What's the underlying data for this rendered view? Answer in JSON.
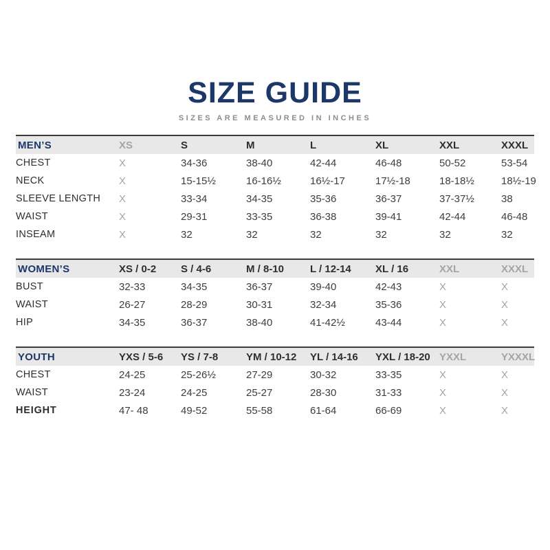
{
  "header": {
    "title": "SIZE GUIDE",
    "subtitle": "SIZES ARE MEASURED IN INCHES"
  },
  "colors": {
    "navy": "#1c3768",
    "text": "#3d3d3d",
    "muted": "#a4a4a4",
    "header_bg": "#e8e8e8",
    "rule": "#3b3b3b",
    "subtitle_gray": "#8d8d8d"
  },
  "unavailable_marker": "X",
  "tables": [
    {
      "id": "mens",
      "section_label": "MEN’S",
      "columns": [
        {
          "label": "XS",
          "muted": true
        },
        {
          "label": "S",
          "muted": false
        },
        {
          "label": "M",
          "muted": false
        },
        {
          "label": "L",
          "muted": false
        },
        {
          "label": "XL",
          "muted": false
        },
        {
          "label": "XXL",
          "muted": false
        },
        {
          "label": "XXXL",
          "muted": false
        }
      ],
      "rows": [
        {
          "label": "CHEST",
          "bold": false,
          "values": [
            "X",
            "34-36",
            "38-40",
            "42-44",
            "46-48",
            "50-52",
            "53-54"
          ]
        },
        {
          "label": "NECK",
          "bold": false,
          "values": [
            "X",
            "15-15½",
            "16-16½",
            "16½-17",
            "17½-18",
            "18-18½",
            "18½-19"
          ]
        },
        {
          "label": "SLEEVE LENGTH",
          "bold": false,
          "values": [
            "X",
            "33-34",
            "34-35",
            "35-36",
            "36-37",
            "37-37½",
            "38"
          ]
        },
        {
          "label": "WAIST",
          "bold": false,
          "values": [
            "X",
            "29-31",
            "33-35",
            "36-38",
            "39-41",
            "42-44",
            "46-48"
          ]
        },
        {
          "label": "INSEAM",
          "bold": false,
          "values": [
            "X",
            "32",
            "32",
            "32",
            "32",
            "32",
            "32"
          ]
        }
      ]
    },
    {
      "id": "womens",
      "section_label": "WOMEN’S",
      "columns": [
        {
          "label": "XS / 0-2",
          "muted": false
        },
        {
          "label": "S / 4-6",
          "muted": false
        },
        {
          "label": "M / 8-10",
          "muted": false
        },
        {
          "label": "L / 12-14",
          "muted": false
        },
        {
          "label": "XL / 16",
          "muted": false
        },
        {
          "label": "XXL",
          "muted": true
        },
        {
          "label": "XXXL",
          "muted": true
        }
      ],
      "rows": [
        {
          "label": "BUST",
          "bold": false,
          "values": [
            "32-33",
            "34-35",
            "36-37",
            "39-40",
            "42-43",
            "X",
            "X"
          ]
        },
        {
          "label": "WAIST",
          "bold": false,
          "values": [
            "26-27",
            "28-29",
            "30-31",
            "32-34",
            "35-36",
            "X",
            "X"
          ]
        },
        {
          "label": "HIP",
          "bold": false,
          "values": [
            "34-35",
            "36-37",
            "38-40",
            "41-42½",
            "43-44",
            "X",
            "X"
          ]
        }
      ]
    },
    {
      "id": "youth",
      "section_label": "YOUTH",
      "columns": [
        {
          "label": "YXS / 5-6",
          "muted": false
        },
        {
          "label": "YS / 7-8",
          "muted": false
        },
        {
          "label": "YM / 10-12",
          "muted": false
        },
        {
          "label": "YL / 14-16",
          "muted": false
        },
        {
          "label": "YXL / 18-20",
          "muted": false
        },
        {
          "label": "YXXL",
          "muted": true
        },
        {
          "label": "YXXXL",
          "muted": true
        }
      ],
      "rows": [
        {
          "label": "CHEST",
          "bold": false,
          "values": [
            "24-25",
            "25-26½",
            "27-29",
            "30-32",
            "33-35",
            "X",
            "X"
          ]
        },
        {
          "label": "WAIST",
          "bold": false,
          "values": [
            "23-24",
            "24-25",
            "25-27",
            "28-30",
            "31-33",
            "X",
            "X"
          ]
        },
        {
          "label": "HEIGHT",
          "bold": true,
          "values": [
            "47- 48",
            "49-52",
            "55-58",
            "61-64",
            "66-69",
            "X",
            "X"
          ]
        }
      ]
    }
  ]
}
